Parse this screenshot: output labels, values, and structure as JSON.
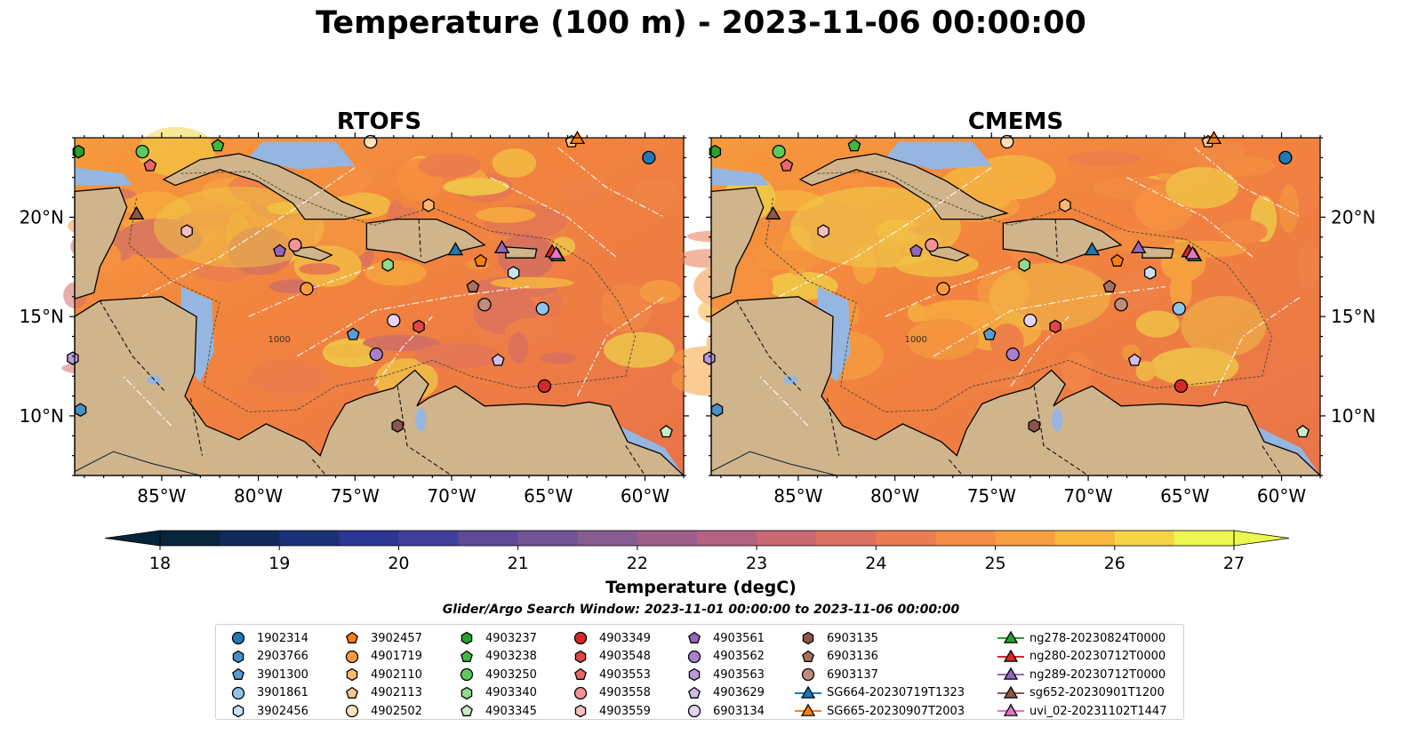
{
  "title": "Temperature (100 m) - 2023-11-06 00:00:00",
  "chart_data": {
    "type": "heatmap",
    "panels": [
      {
        "title": "RTOFS"
      },
      {
        "title": "CMEMS"
      }
    ],
    "x_ticks": [
      -85,
      -80,
      -75,
      -70,
      -65,
      -60
    ],
    "x_tick_labels": [
      "85°W",
      "80°W",
      "75°W",
      "70°W",
      "65°W",
      "60°W"
    ],
    "y_ticks": [
      10,
      15,
      20
    ],
    "y_tick_labels": [
      "10°N",
      "15°N",
      "20°N"
    ],
    "xlim": [
      -89.5,
      -58.0
    ],
    "ylim": [
      7.0,
      24.0
    ],
    "colorbar": {
      "label": "Temperature (degC)",
      "min": 18,
      "max": 27,
      "step": 0.5,
      "ticks": [
        18,
        19,
        20,
        21,
        22,
        23,
        24,
        25,
        26,
        27
      ],
      "extend": "both",
      "colormap": "thermal"
    },
    "contour_label": "1000",
    "search_window": "Glider/Argo Search Window: 2023-11-01 00:00:00 to 2023-11-06 00:00:00",
    "observations": [
      {
        "id": "1902314",
        "lon": -59.8,
        "lat": 23.0,
        "marker": "circle",
        "color": "#1f77b4"
      },
      {
        "id": "2903766",
        "lon": -89.2,
        "lat": 10.3,
        "marker": "hexagon",
        "color": "#4a90c8"
      },
      {
        "id": "3901300",
        "lon": -75.1,
        "lat": 14.1,
        "marker": "pentagon",
        "color": "#5b9bd5"
      },
      {
        "id": "3901861",
        "lon": -65.3,
        "lat": 15.4,
        "marker": "circle",
        "color": "#8fc3ea"
      },
      {
        "id": "3902456",
        "lon": -66.8,
        "lat": 17.2,
        "marker": "hexagon",
        "color": "#c8e2f5"
      },
      {
        "id": "3902457",
        "lon": -68.5,
        "lat": 17.8,
        "marker": "pentagon",
        "color": "#ff7f0e"
      },
      {
        "id": "4901719",
        "lon": -77.5,
        "lat": 16.4,
        "marker": "circle",
        "color": "#ff9a3c"
      },
      {
        "id": "4902110",
        "lon": -71.2,
        "lat": 20.6,
        "marker": "hexagon",
        "color": "#ffb870"
      },
      {
        "id": "4902113",
        "lon": -63.8,
        "lat": 23.8,
        "marker": "pentagon",
        "color": "#ffc990"
      },
      {
        "id": "4902502",
        "lon": -74.2,
        "lat": 23.8,
        "marker": "circle",
        "color": "#ffe0bc"
      },
      {
        "id": "4903237",
        "lon": -89.3,
        "lat": 23.3,
        "marker": "hexagon",
        "color": "#2ca02c"
      },
      {
        "id": "4903238",
        "lon": -82.1,
        "lat": 23.6,
        "marker": "pentagon",
        "color": "#3fb83f"
      },
      {
        "id": "4903250",
        "lon": -86.0,
        "lat": 23.3,
        "marker": "circle",
        "color": "#5cc95c"
      },
      {
        "id": "4903340",
        "lon": -73.3,
        "lat": 17.6,
        "marker": "hexagon",
        "color": "#8edb8e"
      },
      {
        "id": "4903345",
        "lon": -58.9,
        "lat": 9.2,
        "marker": "pentagon",
        "color": "#c5efc5"
      },
      {
        "id": "4903349",
        "lon": -65.2,
        "lat": 11.5,
        "marker": "circle",
        "color": "#d62728"
      },
      {
        "id": "4903548",
        "lon": -71.7,
        "lat": 14.5,
        "marker": "hexagon",
        "color": "#e04545"
      },
      {
        "id": "4903553",
        "lon": -85.6,
        "lat": 22.6,
        "marker": "pentagon",
        "color": "#e8686a"
      },
      {
        "id": "4903558",
        "lon": -78.1,
        "lat": 18.6,
        "marker": "circle",
        "color": "#f09494"
      },
      {
        "id": "4903559",
        "lon": -83.7,
        "lat": 19.3,
        "marker": "hexagon",
        "color": "#f7c0c0"
      },
      {
        "id": "4903561",
        "lon": -78.9,
        "lat": 18.3,
        "marker": "pentagon",
        "color": "#9467bd"
      },
      {
        "id": "4903562",
        "lon": -73.9,
        "lat": 13.1,
        "marker": "circle",
        "color": "#a880cc"
      },
      {
        "id": "4903563",
        "lon": -89.6,
        "lat": 12.9,
        "marker": "hexagon",
        "color": "#bb9ad9"
      },
      {
        "id": "4903629",
        "lon": -67.6,
        "lat": 12.8,
        "marker": "pentagon",
        "color": "#d2bcea"
      },
      {
        "id": "6903134",
        "lon": -73.0,
        "lat": 14.8,
        "marker": "circle",
        "color": "#e6d4f6"
      },
      {
        "id": "6903135",
        "lon": -72.8,
        "lat": 9.5,
        "marker": "hexagon",
        "color": "#8c564b"
      },
      {
        "id": "6903136",
        "lon": -68.9,
        "lat": 16.5,
        "marker": "pentagon",
        "color": "#a8705f"
      },
      {
        "id": "6903137",
        "lon": -68.3,
        "lat": 15.6,
        "marker": "circle",
        "color": "#c08c7c"
      },
      {
        "id": "SG664-20230719T1323",
        "lon": -69.8,
        "lat": 18.4,
        "marker": "triangle",
        "color": "#1f77b4"
      },
      {
        "id": "SG665-20230907T2003",
        "lon": -63.5,
        "lat": 24.0,
        "marker": "triangle",
        "color": "#ff7f0e"
      },
      {
        "id": "ng278-20230824T0000",
        "lon": -64.5,
        "lat": 18.1,
        "marker": "triangle",
        "color": "#2ca02c"
      },
      {
        "id": "ng280-20230712T0000",
        "lon": -64.8,
        "lat": 18.3,
        "marker": "triangle",
        "color": "#d62728"
      },
      {
        "id": "ng289-20230712T0000",
        "lon": -67.4,
        "lat": 18.5,
        "marker": "triangle",
        "color": "#9467bd"
      },
      {
        "id": "sg652-20230901T1200",
        "lon": -86.3,
        "lat": 20.2,
        "marker": "triangle",
        "color": "#8c564b"
      },
      {
        "id": "uvi_02-20231102T1447",
        "lon": -64.6,
        "lat": 18.2,
        "marker": "triangle",
        "color": "#e377c2"
      }
    ]
  }
}
